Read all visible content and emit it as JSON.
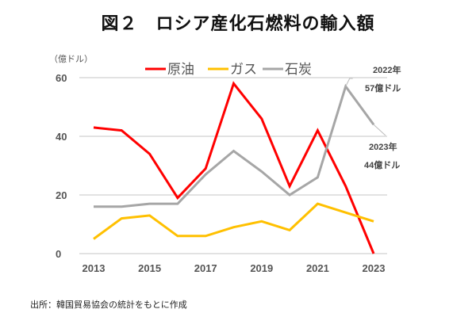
{
  "chart_data": {
    "type": "line",
    "title": "図２　ロシア産化石燃料の輸入額",
    "ylabel": "（億ドル）",
    "xlabel": "",
    "x": [
      2013,
      2014,
      2015,
      2016,
      2017,
      2018,
      2019,
      2020,
      2021,
      2022,
      2023
    ],
    "x_tick_labels": [
      "2013",
      "2015",
      "2017",
      "2019",
      "2021",
      "2023"
    ],
    "y_ticks": [
      0,
      20,
      40,
      60
    ],
    "ylim": [
      0,
      60
    ],
    "grid": true,
    "legend_position": "top",
    "series": [
      {
        "name": "原油",
        "color": "#ff0000",
        "values": [
          43,
          42,
          34,
          19,
          29,
          58,
          46,
          23,
          42,
          23,
          0
        ]
      },
      {
        "name": "ガス",
        "color": "#ffc000",
        "values": [
          5,
          12,
          13,
          6,
          6,
          9,
          11,
          8,
          17,
          14,
          11
        ]
      },
      {
        "name": "石炭",
        "color": "#a6a6a6",
        "values": [
          16,
          16,
          17,
          17,
          27,
          35,
          28,
          20,
          26,
          57,
          44
        ]
      }
    ],
    "annotations": [
      {
        "year_label": "2022年",
        "value_label": "57億ドル",
        "x": 2022,
        "y": 57
      },
      {
        "year_label": "2023年",
        "value_label": "44億ドル",
        "x": 2023,
        "y": 44
      }
    ],
    "source": "出所：韓国貿易協会の統計をもとに作成"
  }
}
